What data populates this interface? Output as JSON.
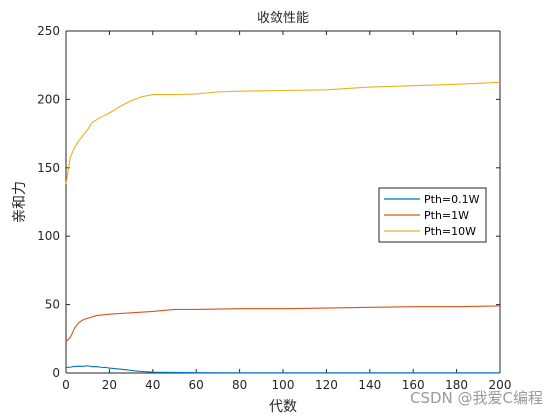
{
  "chart_data": {
    "type": "line",
    "title": "收敛性能",
    "xlabel": "代数",
    "ylabel": "亲和力",
    "xlim": [
      0,
      200
    ],
    "ylim": [
      0,
      250
    ],
    "xticks": [
      0,
      20,
      40,
      60,
      80,
      100,
      120,
      140,
      160,
      180,
      200
    ],
    "yticks": [
      0,
      50,
      100,
      150,
      200,
      250
    ],
    "grid": false,
    "legend_position": "right",
    "series": [
      {
        "name": "Pth=0.1W",
        "color": "#0072BD",
        "x": [
          0,
          2,
          4,
          6,
          8,
          10,
          12,
          14,
          16,
          18,
          20,
          24,
          28,
          32,
          36,
          40,
          50,
          60,
          80,
          100,
          120,
          140,
          160,
          180,
          200
        ],
        "y": [
          4,
          4.3,
          4.8,
          5,
          4.9,
          5.3,
          4.6,
          4.7,
          4.2,
          4.1,
          3.6,
          3.0,
          2.3,
          1.5,
          1.0,
          0.6,
          0.4,
          0.2,
          0.1,
          0.1,
          0.1,
          0.1,
          0.1,
          0.1,
          0.1
        ]
      },
      {
        "name": "Pth=1W",
        "color": "#D95319",
        "x": [
          0,
          2,
          4,
          6,
          8,
          10,
          14,
          20,
          30,
          40,
          50,
          60,
          80,
          100,
          120,
          140,
          160,
          180,
          200
        ],
        "y": [
          23,
          26,
          33,
          37,
          39,
          40,
          42,
          43,
          44,
          45,
          46.5,
          46.5,
          47,
          47,
          47.5,
          48,
          48.5,
          48.5,
          49
        ]
      },
      {
        "name": "Pth=10W",
        "color": "#EDB120",
        "x": [
          0,
          2,
          4,
          6,
          8,
          10,
          12,
          14,
          16,
          20,
          25,
          30,
          35,
          40,
          50,
          60,
          70,
          80,
          100,
          120,
          140,
          160,
          180,
          200
        ],
        "y": [
          138,
          158,
          165,
          170,
          174,
          178,
          183,
          185,
          187,
          190,
          195,
          199,
          202,
          203.5,
          203.5,
          204,
          205.5,
          206,
          206.5,
          207,
          209,
          210,
          211,
          212.5
        ]
      }
    ]
  },
  "watermark": "CSDN @我爱C编程"
}
